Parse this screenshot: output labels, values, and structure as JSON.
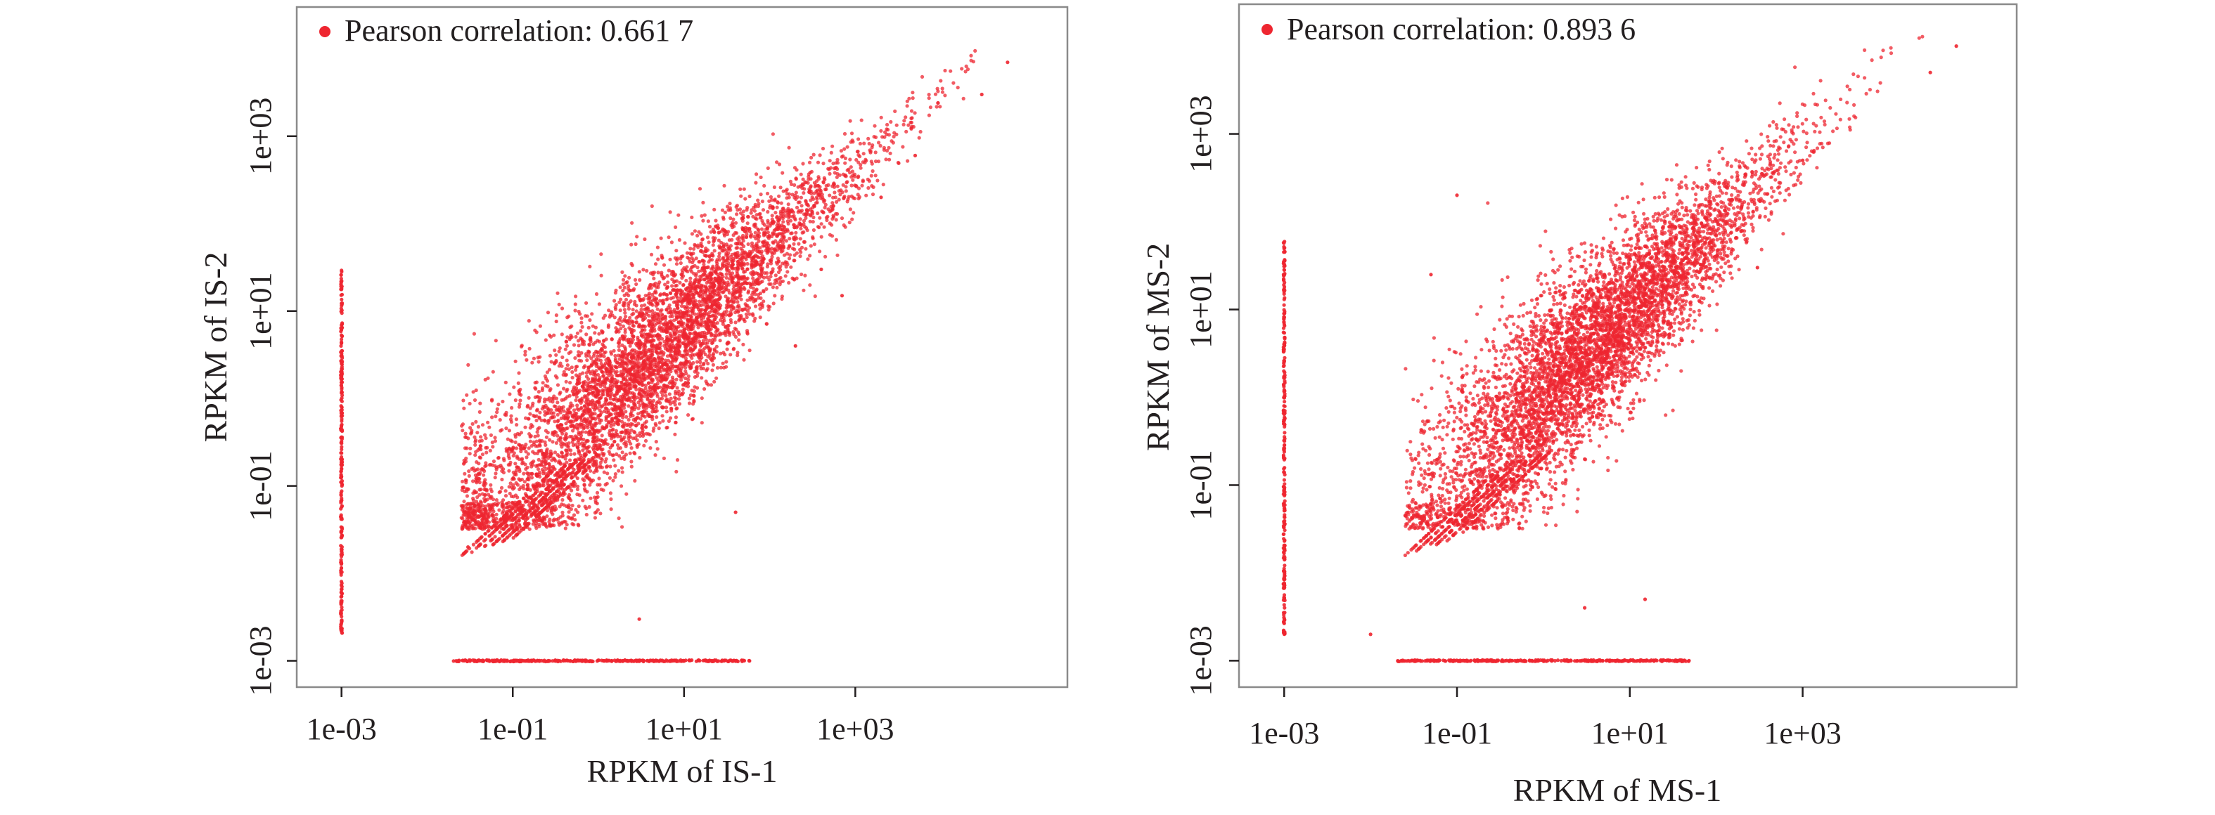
{
  "colors": {
    "point": "#ee2630",
    "axis": "#231f20",
    "frame": "#8a8a8a"
  },
  "chart_data": [
    {
      "type": "scatter",
      "scale": "log10",
      "xlabel": "RPKM of IS-1",
      "ylabel": "RPKM of IS-2",
      "legend": "Pearson correlation: 0.661 7",
      "legend_position": "top-left",
      "xlim": [
        0.0003,
        300000
      ],
      "ylim": [
        0.0005,
        30000
      ],
      "xticks": [
        0.001,
        0.1,
        10,
        1000
      ],
      "yticks": [
        0.001,
        0.1,
        10,
        1000
      ],
      "xtick_labels": [
        "1e-03",
        "1e-01",
        "1e+01",
        "1e+03"
      ],
      "ytick_labels": [
        "1e-03",
        "1e-01",
        "1e+01",
        "1e+03"
      ],
      "zero_floor": 0.001,
      "cloud": {
        "core_center_log": [
          0.3,
          0.2
        ],
        "core_spread_log": 0.85,
        "trend_slope": 0.9,
        "max_log": 4.4,
        "density_points": 5500
      },
      "outliers": [
        {
          "x": 2000,
          "y": 200
        },
        {
          "x": 5000,
          "y": 600
        },
        {
          "x": 30000,
          "y": 3000
        },
        {
          "x": 60000,
          "y": 7000
        },
        {
          "x": 200,
          "y": 4
        },
        {
          "x": 700,
          "y": 15
        },
        {
          "x": 40,
          "y": 0.05
        },
        {
          "x": 3,
          "y": 0.003
        },
        {
          "x": 0.03,
          "y": 0.02
        },
        {
          "x": 50,
          "y": 8
        },
        {
          "x": 400,
          "y": 30
        }
      ],
      "floor_x_range": [
        0.02,
        60
      ],
      "floor_y_range": [
        0.002,
        30
      ]
    },
    {
      "type": "scatter",
      "scale": "log10",
      "xlabel": "RPKM of MS-1",
      "ylabel": "RPKM of MS-2",
      "legend": "Pearson correlation: 0.893 6",
      "legend_position": "top-left",
      "xlim": [
        0.0003,
        300000
      ],
      "ylim": [
        0.0005,
        30000
      ],
      "xticks": [
        0.001,
        0.1,
        10,
        1000
      ],
      "yticks": [
        0.001,
        0.1,
        10,
        1000
      ],
      "xtick_labels": [
        "1e-03",
        "1e-01",
        "1e+01",
        "1e+03"
      ],
      "ytick_labels": [
        "1e-03",
        "1e-01",
        "1e+01",
        "1e+03"
      ],
      "zero_floor": 0.001,
      "cloud": {
        "core_center_log": [
          0.3,
          0.3
        ],
        "core_spread_log": 0.7,
        "trend_slope": 0.95,
        "max_log": 4.4,
        "density_points": 5500
      },
      "outliers": [
        {
          "x": 0.01,
          "y": 0.002
        },
        {
          "x": 0.05,
          "y": 25
        },
        {
          "x": 0.1,
          "y": 200
        },
        {
          "x": 15,
          "y": 0.005
        },
        {
          "x": 30000,
          "y": 5000
        },
        {
          "x": 60000,
          "y": 10000
        },
        {
          "x": 300,
          "y": 30
        },
        {
          "x": 1000,
          "y": 500
        },
        {
          "x": 15,
          "y": 12
        },
        {
          "x": 3,
          "y": 0.004
        }
      ],
      "floor_x_range": [
        0.02,
        50
      ],
      "floor_y_range": [
        0.002,
        60
      ]
    }
  ]
}
